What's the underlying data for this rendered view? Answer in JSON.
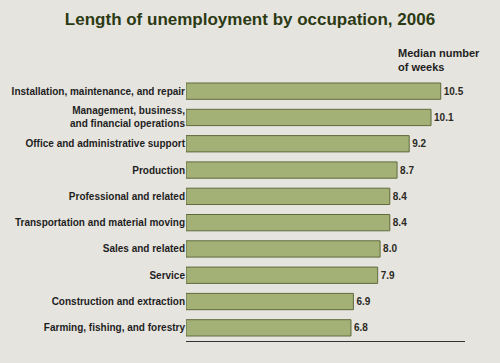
{
  "chart_data": {
    "type": "bar",
    "title": "Length of unemployment by occupation, 2006",
    "xlabel": "Median number\nof weeks",
    "orientation": "horizontal",
    "categories": [
      "Installation, maintenance, and repair",
      "Management, business,\nand financial operations",
      "Office and administrative support",
      "Production",
      "Professional and related",
      "Transportation and material moving",
      "Sales and related",
      "Service",
      "Construction and extraction",
      "Farming, fishing, and forestry"
    ],
    "values": [
      10.5,
      10.1,
      9.2,
      8.7,
      8.4,
      8.4,
      8.0,
      7.9,
      6.9,
      6.8
    ],
    "value_labels": [
      "10.5",
      "10.1",
      "9.2",
      "8.7",
      "8.4",
      "8.4",
      "8.0",
      "7.9",
      "6.9",
      "6.8"
    ],
    "data_labels": true,
    "color": "#a3b177",
    "xlim": [
      0,
      11.5
    ],
    "xticks": [],
    "tick_labels": "y",
    "grid": false
  }
}
